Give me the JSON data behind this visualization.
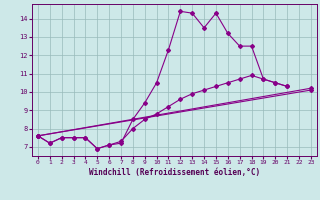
{
  "xlabel": "Windchill (Refroidissement éolien,°C)",
  "background_color": "#cde8e8",
  "line_color": "#880088",
  "grid_color": "#99bbbb",
  "xlim": [
    -0.5,
    23.5
  ],
  "ylim": [
    6.5,
    14.8
  ],
  "xticks": [
    0,
    1,
    2,
    3,
    4,
    5,
    6,
    7,
    8,
    9,
    10,
    11,
    12,
    13,
    14,
    15,
    16,
    17,
    18,
    19,
    20,
    21,
    22,
    23
  ],
  "yticks": [
    7,
    8,
    9,
    10,
    11,
    12,
    13,
    14
  ],
  "line1_x": [
    0,
    1,
    2,
    3,
    4,
    5,
    6,
    7,
    8,
    9,
    10,
    11,
    12,
    13,
    14,
    15,
    16,
    17,
    18,
    19,
    20,
    21
  ],
  "line1_y": [
    7.6,
    7.2,
    7.5,
    7.5,
    7.5,
    6.9,
    7.1,
    7.2,
    8.5,
    9.4,
    10.5,
    12.3,
    14.4,
    14.3,
    13.5,
    14.3,
    13.2,
    12.5,
    12.5,
    10.7,
    10.5,
    10.3
  ],
  "line2_x": [
    0,
    1,
    2,
    3,
    4,
    5,
    6,
    7,
    8,
    9,
    10,
    11,
    12,
    13,
    14,
    15,
    16,
    17,
    18,
    19,
    20,
    21
  ],
  "line2_y": [
    7.6,
    7.2,
    7.5,
    7.5,
    7.5,
    6.9,
    7.1,
    7.3,
    8.0,
    8.5,
    8.8,
    9.2,
    9.6,
    9.9,
    10.1,
    10.3,
    10.5,
    10.7,
    10.9,
    10.7,
    10.5,
    10.3
  ],
  "line3_x": [
    0,
    23
  ],
  "line3_y": [
    7.6,
    10.2
  ],
  "line4_x": [
    0,
    23
  ],
  "line4_y": [
    7.6,
    10.1
  ],
  "tick_color": "#660066",
  "xlabel_color": "#550055",
  "spine_color": "#660066"
}
